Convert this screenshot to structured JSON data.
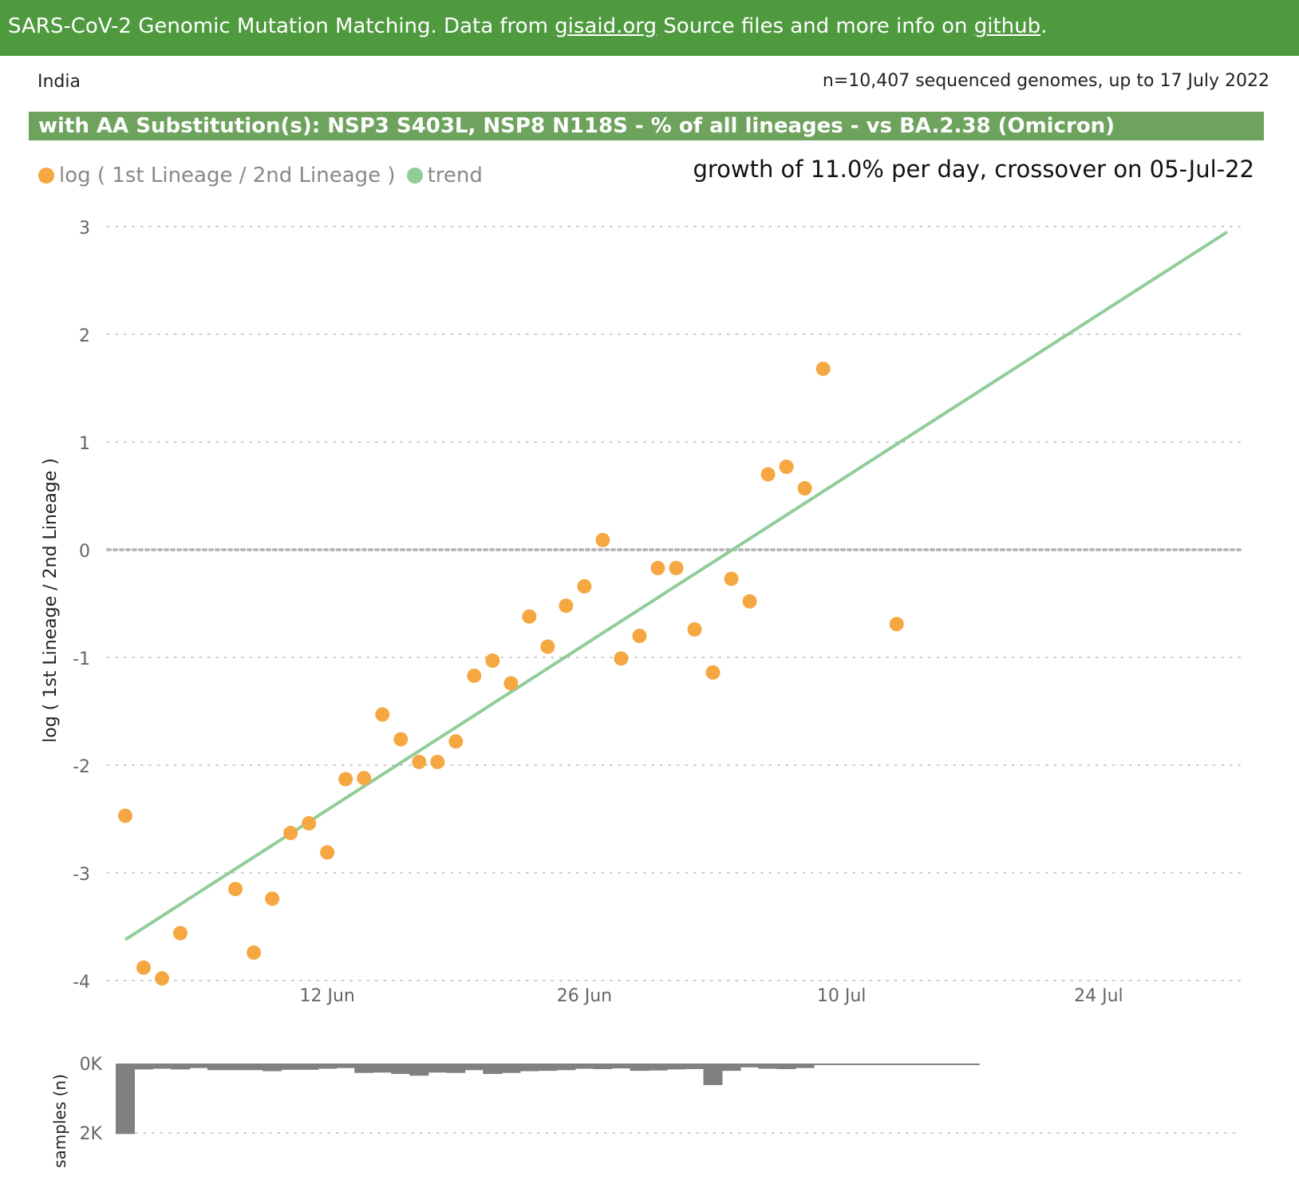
{
  "header": {
    "text_before_link1": "SARS-CoV-2 Genomic Mutation Matching. Data from ",
    "link1": "gisaid.org",
    "text_between": " Source files and more info on ",
    "link2": "github",
    "text_after": "."
  },
  "country": "India",
  "sample_count_text": "n=10,407 sequenced genomes, up to 17 July 2022",
  "subtitle": "with AA Substitution(s): NSP3 S403L, NSP8 N118S - % of all lineages -  vs BA.2.38 (Omicron)",
  "legend": [
    {
      "label": "log ( 1st Lineage / 2nd Lineage )",
      "color": "#f5a742",
      "icon": "circle-marker"
    },
    {
      "label": "trend",
      "color": "#90cd97",
      "icon": "circle-marker"
    }
  ],
  "growth_text": "growth of 11.0% per day, crossover on 05-Jul-22",
  "chart_data": [
    {
      "type": "scatter",
      "ylabel": "log ( 1st Lineage / 2nd Lineage )",
      "ylim": [
        -4,
        3
      ],
      "yticks": [
        "3",
        "2",
        "1",
        "0",
        "-1",
        "-2",
        "-3",
        "-4"
      ],
      "x_ticks": [
        "12 Jun",
        "26 Jun",
        "10 Jul",
        "24 Jul"
      ],
      "x_range": [
        "2022-06-01",
        "2022-08-01"
      ],
      "grid": true,
      "legend_position": "top-left",
      "series": [
        {
          "name": "log ( 1st Lineage / 2nd Lineage )",
          "color": "#f5a742",
          "points": [
            [
              "2022-06-01",
              -2.47
            ],
            [
              "2022-06-02",
              -3.88
            ],
            [
              "2022-06-03",
              -3.98
            ],
            [
              "2022-06-04",
              -3.56
            ],
            [
              "2022-06-07",
              -3.15
            ],
            [
              "2022-06-08",
              -3.74
            ],
            [
              "2022-06-09",
              -3.24
            ],
            [
              "2022-06-10",
              -2.63
            ],
            [
              "2022-06-11",
              -2.54
            ],
            [
              "2022-06-12",
              -2.81
            ],
            [
              "2022-06-13",
              -2.13
            ],
            [
              "2022-06-14",
              -2.12
            ],
            [
              "2022-06-15",
              -1.53
            ],
            [
              "2022-06-16",
              -1.76
            ],
            [
              "2022-06-17",
              -1.97
            ],
            [
              "2022-06-18",
              -1.97
            ],
            [
              "2022-06-19",
              -1.78
            ],
            [
              "2022-06-20",
              -1.17
            ],
            [
              "2022-06-21",
              -1.03
            ],
            [
              "2022-06-22",
              -1.24
            ],
            [
              "2022-06-23",
              -0.62
            ],
            [
              "2022-06-24",
              -0.9
            ],
            [
              "2022-06-25",
              -0.52
            ],
            [
              "2022-06-26",
              -0.34
            ],
            [
              "2022-06-27",
              0.09
            ],
            [
              "2022-06-28",
              -1.01
            ],
            [
              "2022-06-29",
              -0.8
            ],
            [
              "2022-06-30",
              -0.17
            ],
            [
              "2022-07-01",
              -0.17
            ],
            [
              "2022-07-02",
              -0.74
            ],
            [
              "2022-07-03",
              -1.14
            ],
            [
              "2022-07-04",
              -0.27
            ],
            [
              "2022-07-05",
              -0.48
            ],
            [
              "2022-07-06",
              0.7
            ],
            [
              "2022-07-07",
              0.77
            ],
            [
              "2022-07-08",
              0.57
            ],
            [
              "2022-07-09",
              1.68
            ],
            [
              "2022-07-13",
              -0.69
            ]
          ]
        },
        {
          "name": "trend",
          "color": "#90cd97",
          "line": [
            [
              "2022-06-01",
              -3.62
            ],
            [
              "2022-07-31",
              2.95
            ]
          ]
        }
      ]
    },
    {
      "type": "bar",
      "ylabel": "samples (n)",
      "yticks": [
        "0K",
        "2K"
      ],
      "ylim": [
        0,
        2000
      ],
      "inverted": true,
      "color": "#808080",
      "start_date": "2022-06-01",
      "values": [
        2030,
        170,
        150,
        170,
        130,
        190,
        190,
        190,
        220,
        180,
        180,
        150,
        130,
        270,
        260,
        300,
        350,
        260,
        270,
        190,
        300,
        270,
        220,
        210,
        190,
        150,
        160,
        140,
        210,
        200,
        170,
        160,
        620,
        210,
        110,
        150,
        160,
        130,
        40,
        30,
        30,
        30,
        30,
        30,
        30,
        30,
        30
      ]
    }
  ]
}
